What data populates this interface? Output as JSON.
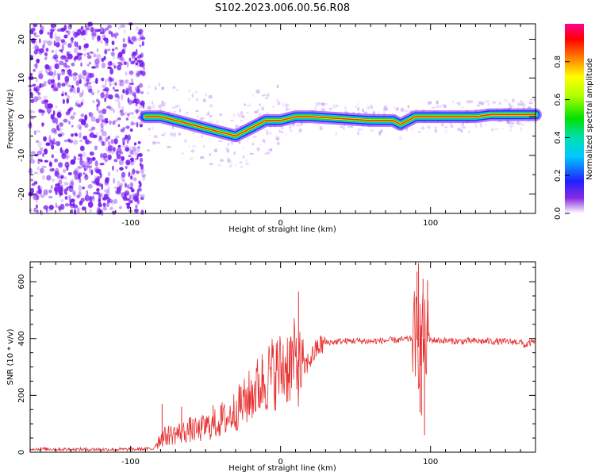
{
  "title": "S102.2023.006.00.56.R08",
  "colors": {
    "signal": "#e63030",
    "scatter": "#7a1ff0",
    "axis": "#000000"
  },
  "chart_data": [
    {
      "type": "heatmap",
      "panel": "spectrogram",
      "xlabel": "Height of straight line (km)",
      "ylabel": "Frequency (Hz)",
      "xlim": [
        -167,
        170
      ],
      "ylim": [
        -25,
        24
      ],
      "xticks": [
        -100,
        0,
        100
      ],
      "yticks": [
        -20,
        -10,
        0,
        10,
        20
      ],
      "grid": false,
      "ridge": {
        "x": [
          -90,
          -80,
          -70,
          -60,
          -50,
          -40,
          -30,
          -20,
          -15,
          -10,
          -5,
          0,
          10,
          20,
          40,
          60,
          70,
          75,
          80,
          90,
          100,
          110,
          120,
          130,
          140,
          150,
          160,
          170
        ],
        "y": [
          0,
          0,
          -1,
          -2,
          -3,
          -4,
          -5,
          -3,
          -2,
          -1,
          -1,
          -1,
          0,
          0,
          -0.5,
          -1,
          -1,
          -1,
          -2,
          0,
          0,
          0,
          0,
          0,
          0.5,
          0.5,
          0.5,
          0.5
        ]
      },
      "noise_region_x": [
        -167,
        -91
      ],
      "colorbar": {
        "label": "Normalized spectral amplitude",
        "range": [
          0,
          1
        ],
        "ticks": [
          0.0,
          0.2,
          0.4,
          0.6,
          0.8
        ]
      }
    },
    {
      "type": "line",
      "panel": "snr",
      "xlabel": "Height of straight line (km)",
      "ylabel": "SNR (10 * v/v)",
      "xlim": [
        -167,
        170
      ],
      "ylim": [
        0,
        670
      ],
      "xticks": [
        -100,
        0,
        100
      ],
      "yticks": [
        0,
        200,
        400,
        600
      ],
      "grid": false,
      "series": [
        {
          "x": [
            -167,
            -140,
            -120,
            -100,
            -85,
            -80,
            -75,
            -70,
            -65,
            -60,
            -55,
            -50,
            -45,
            -40,
            -35,
            -30,
            -25,
            -20,
            -15,
            -10,
            -5,
            0,
            5,
            10,
            12,
            15,
            20,
            25,
            30,
            40,
            50,
            60,
            70,
            80,
            88,
            90,
            92,
            94,
            96,
            98,
            100,
            110,
            120,
            130,
            140,
            150,
            160,
            163,
            165,
            170
          ],
          "values": [
            12,
            10,
            10,
            10,
            12,
            50,
            60,
            65,
            70,
            80,
            75,
            90,
            95,
            110,
            120,
            150,
            170,
            200,
            230,
            260,
            280,
            290,
            310,
            320,
            300,
            290,
            330,
            370,
            385,
            390,
            392,
            390,
            393,
            395,
            400,
            420,
            370,
            430,
            380,
            390,
            395,
            392,
            390,
            391,
            390,
            389,
            388,
            375,
            382,
            390
          ]
        },
        {
          "x": [
            -79,
            -66,
            -45,
            -39,
            -27,
            -17,
            -12,
            12,
            91,
            92,
            93,
            94,
            95,
            96,
            98
          ],
          "values": [
            170,
            160,
            165,
            175,
            230,
            250,
            325,
            565,
            635,
            665,
            140,
            130,
            610,
            60,
            605
          ]
        }
      ]
    }
  ]
}
